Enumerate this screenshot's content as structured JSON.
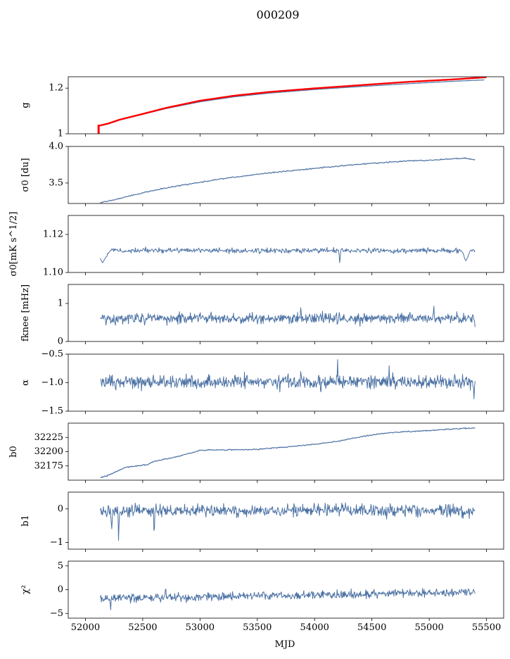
{
  "title": "000209",
  "xlabel": "MJD",
  "x_ticks": [
    52000,
    52500,
    53000,
    53500,
    54000,
    54500,
    55000,
    55500
  ],
  "colors": {
    "series": "#4c72a4",
    "highlight": "#ff0000",
    "axes": "#000000"
  },
  "chart_data": [
    {
      "type": "line",
      "ylabel": "g",
      "xlim": [
        51850,
        55650
      ],
      "ylim": [
        1.0,
        1.25
      ],
      "yticks": [
        1.0,
        1.2
      ],
      "series": [
        {
          "kind": "trend",
          "color": "#4c72a4",
          "width": 1.2,
          "x": [
            52115,
            52200,
            52300,
            52500,
            52700,
            53000,
            53300,
            53600,
            54000,
            54400,
            54800,
            55200,
            55480
          ],
          "y": [
            1.033,
            1.043,
            1.06,
            1.085,
            1.11,
            1.14,
            1.162,
            1.178,
            1.194,
            1.207,
            1.219,
            1.23,
            1.236
          ]
        },
        {
          "kind": "trend",
          "color": "#ff0000",
          "width": 2.4,
          "x": [
            52115,
            52200,
            52300,
            52500,
            52700,
            53000,
            53300,
            53600,
            54000,
            54400,
            54800,
            55200,
            55500
          ],
          "y": [
            1.035,
            1.045,
            1.062,
            1.087,
            1.113,
            1.145,
            1.167,
            1.183,
            1.199,
            1.213,
            1.227,
            1.238,
            1.248
          ]
        },
        {
          "kind": "vline",
          "color": "#ff0000",
          "width": 3,
          "x": 52115,
          "y1": 1.0,
          "y2": 1.04
        }
      ]
    },
    {
      "type": "line",
      "ylabel": "σ0 [du]",
      "xlim": [
        51850,
        55650
      ],
      "ylim": [
        3.22,
        4.0
      ],
      "yticks": [
        3.5,
        4.0
      ],
      "ytick_labels": [
        "3.5",
        "4.0"
      ],
      "series": [
        {
          "kind": "trend",
          "color": "#4c72a4",
          "width": 1.2,
          "noise": 0.004,
          "seed": 2,
          "x": [
            52130,
            52250,
            52400,
            52600,
            52800,
            53000,
            53200,
            53500,
            53800,
            54000,
            54200,
            54500,
            54800,
            55000,
            55300,
            55400
          ],
          "y": [
            3.23,
            3.27,
            3.33,
            3.4,
            3.46,
            3.51,
            3.56,
            3.62,
            3.67,
            3.7,
            3.73,
            3.77,
            3.8,
            3.81,
            3.84,
            3.82
          ]
        }
      ]
    },
    {
      "type": "line",
      "ylabel": "σ0[mK s^1/2]",
      "xlim": [
        51850,
        55650
      ],
      "ylim": [
        1.1,
        1.13
      ],
      "yticks": [
        1.1,
        1.12
      ],
      "ytick_labels": [
        "1.10",
        "1.12"
      ],
      "series": [
        {
          "kind": "noise",
          "color": "#4c72a4",
          "width": 1.0,
          "x0": 52130,
          "x1": 55400,
          "n": 620,
          "mean": 1.1115,
          "amp": 0.0012,
          "seed": 3,
          "events": [
            {
              "x": 52150,
              "y": 1.105,
              "w": 60
            },
            {
              "x": 54220,
              "y": 1.104,
              "w": 8
            },
            {
              "x": 55320,
              "y": 1.106,
              "w": 40
            }
          ]
        }
      ]
    },
    {
      "type": "line",
      "ylabel": "fknee [mHz]",
      "xlim": [
        51850,
        55650
      ],
      "ylim": [
        0.0,
        1.5
      ],
      "yticks": [
        0,
        1
      ],
      "ytick_labels": [
        "0",
        "1"
      ],
      "series": [
        {
          "kind": "noise",
          "color": "#4c72a4",
          "width": 1.0,
          "x0": 52130,
          "x1": 55400,
          "n": 720,
          "mean": 0.61,
          "amp": 0.13,
          "seed": 4,
          "events": [
            {
              "x": 53880,
              "y": 0.98,
              "w": 6
            },
            {
              "x": 55040,
              "y": 1.02,
              "w": 6
            },
            {
              "x": 55400,
              "y": 0.38,
              "w": 6
            }
          ]
        }
      ]
    },
    {
      "type": "line",
      "ylabel": "α",
      "xlim": [
        51850,
        55650
      ],
      "ylim": [
        -1.5,
        -0.5
      ],
      "yticks": [
        -1.5,
        -1.0,
        -0.5
      ],
      "ytick_labels": [
        "−1.5",
        "−1.0",
        "−0.5"
      ],
      "series": [
        {
          "kind": "noise",
          "color": "#4c72a4",
          "width": 1.0,
          "x0": 52130,
          "x1": 55400,
          "n": 720,
          "mean": -0.99,
          "amp": 0.11,
          "seed": 5,
          "events": [
            {
              "x": 54200,
              "y": -0.5,
              "w": 5
            },
            {
              "x": 54650,
              "y": -0.66,
              "w": 5
            },
            {
              "x": 53880,
              "y": -0.7,
              "w": 5
            },
            {
              "x": 55390,
              "y": -1.33,
              "w": 5
            }
          ]
        }
      ]
    },
    {
      "type": "line",
      "ylabel": "b0",
      "xlim": [
        51850,
        55650
      ],
      "ylim": [
        32150,
        32250
      ],
      "yticks": [
        32175,
        32200,
        32225
      ],
      "series": [
        {
          "kind": "trend",
          "color": "#4c72a4",
          "width": 1.2,
          "noise": 0.5,
          "seed": 6,
          "x": [
            52130,
            52180,
            52250,
            52300,
            52350,
            52500,
            52550,
            52600,
            52800,
            53000,
            53100,
            53500,
            53800,
            54000,
            54200,
            54400,
            54600,
            54800,
            55000,
            55200,
            55300,
            55400
          ],
          "y": [
            32155,
            32157,
            32163,
            32168,
            32173,
            32176,
            32178,
            32183,
            32191,
            32202,
            32203,
            32204,
            32209,
            32213,
            32218,
            32226,
            32232,
            32235,
            32237,
            32240,
            32241,
            32241
          ]
        }
      ]
    },
    {
      "type": "line",
      "ylabel": "b1",
      "xlim": [
        51850,
        55650
      ],
      "ylim": [
        -1.2,
        0.5
      ],
      "yticks": [
        -1,
        0
      ],
      "ytick_labels": [
        "−1",
        "0"
      ],
      "series": [
        {
          "kind": "noise",
          "color": "#4c72a4",
          "width": 1.0,
          "x0": 52130,
          "x1": 55400,
          "n": 720,
          "mean": -0.05,
          "amp": 0.17,
          "seed": 7,
          "events": [
            {
              "x": 52290,
              "y": -1.12,
              "w": 6
            },
            {
              "x": 52600,
              "y": -1.0,
              "w": 6
            },
            {
              "x": 52230,
              "y": -0.6,
              "w": 10
            }
          ]
        }
      ]
    },
    {
      "type": "line",
      "ylabel": "χ²",
      "xlim": [
        51850,
        55650
      ],
      "ylim": [
        -6,
        6
      ],
      "yticks": [
        -5,
        0,
        5
      ],
      "ytick_labels": [
        "−5",
        "0",
        "5"
      ],
      "series": [
        {
          "kind": "noise",
          "color": "#4c72a4",
          "width": 1.0,
          "x0": 52130,
          "x1": 55400,
          "n": 720,
          "mean_start": -1.9,
          "mean_end": -0.5,
          "amp": 0.8,
          "seed": 8,
          "events": [
            {
              "x": 52220,
              "y": -4.6,
              "w": 6
            },
            {
              "x": 52700,
              "y": 1.5,
              "w": 5
            }
          ]
        }
      ]
    }
  ]
}
